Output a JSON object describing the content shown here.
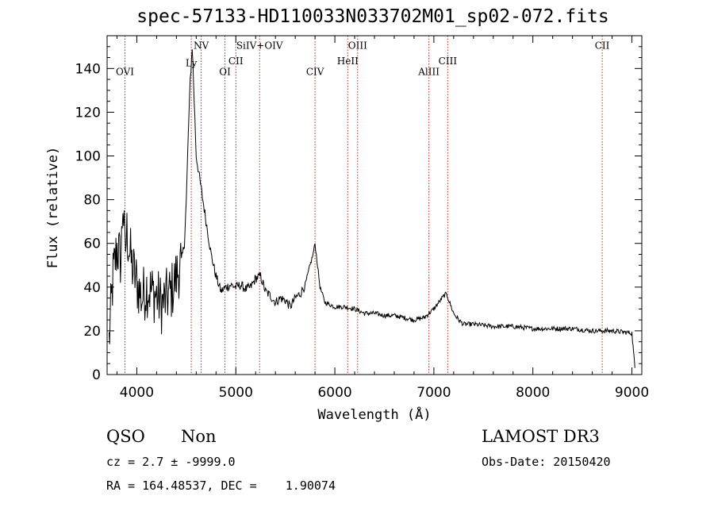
{
  "chart_data": {
    "type": "line",
    "title": "spec-57133-HD110033N033702M01_sp02-072.fits",
    "xlabel": "Wavelength (Å)",
    "ylabel": "Flux (relative)",
    "xlim": [
      3700,
      9100
    ],
    "ylim": [
      0,
      155
    ],
    "xticks": [
      4000,
      5000,
      6000,
      7000,
      8000,
      9000
    ],
    "yticks": [
      0,
      20,
      40,
      60,
      80,
      100,
      120,
      140
    ],
    "lines": [
      {
        "name": "OVI",
        "wavelength": 3880,
        "label_y": 137
      },
      {
        "name": "Ly",
        "wavelength": 4550,
        "label_y": 141
      },
      {
        "name": "NV",
        "wavelength": 4650,
        "label_y": 149
      },
      {
        "name": "OI",
        "wavelength": 4890,
        "label_y": 137
      },
      {
        "name": "CII",
        "wavelength": 5000,
        "label_y": 142
      },
      {
        "name": "SiIV+OIV",
        "wavelength": 5240,
        "label_y": 149
      },
      {
        "name": "CIV",
        "wavelength": 5800,
        "label_y": 137
      },
      {
        "name": "HeII",
        "wavelength": 6130,
        "label_y": 142
      },
      {
        "name": "OIII",
        "wavelength": 6230,
        "label_y": 149
      },
      {
        "name": "AlIII",
        "wavelength": 6950,
        "label_y": 137
      },
      {
        "name": "CIII",
        "wavelength": 7140,
        "label_y": 142
      },
      {
        "name": "CII",
        "wavelength": 8700,
        "label_y": 149
      }
    ],
    "series": [
      {
        "x": [
          3720,
          3760,
          3800,
          3840,
          3860,
          3880,
          3900,
          3950,
          4000,
          4050,
          4100,
          4150,
          4200,
          4250,
          4300,
          4350,
          4400,
          4450,
          4480,
          4500,
          4520,
          4540,
          4560,
          4580,
          4600,
          4650,
          4700,
          4750,
          4800,
          4850,
          4900,
          4950,
          5000,
          5050,
          5100,
          5150,
          5200,
          5250,
          5300,
          5350,
          5400,
          5450,
          5500,
          5550,
          5600,
          5650,
          5700,
          5750,
          5780,
          5800,
          5820,
          5850,
          5900,
          6000,
          6100,
          6200,
          6300,
          6400,
          6500,
          6600,
          6700,
          6800,
          6900,
          7000,
          7050,
          7100,
          7130,
          7150,
          7200,
          7250,
          7300,
          7400,
          7600,
          7800,
          8000,
          8200,
          8400,
          8600,
          8800,
          9000,
          9030
        ],
        "y": [
          15,
          45,
          58,
          52,
          80,
          55,
          65,
          50,
          42,
          35,
          40,
          38,
          36,
          32,
          35,
          38,
          45,
          52,
          60,
          80,
          110,
          135,
          150,
          125,
          100,
          85,
          70,
          55,
          45,
          38,
          40,
          41,
          40,
          41,
          39,
          40,
          44,
          45,
          38,
          36,
          33,
          35,
          34,
          31,
          35,
          37,
          41,
          50,
          55,
          60,
          52,
          40,
          33,
          31,
          31,
          30,
          28,
          28,
          27,
          27,
          26,
          25,
          26,
          30,
          33,
          36,
          37,
          34,
          28,
          25,
          23,
          23,
          22,
          22,
          21,
          21,
          21,
          20,
          20,
          19,
          3
        ]
      }
    ]
  },
  "annotations": {
    "object_class": "QSO",
    "subclass": "Non",
    "survey": "LAMOST DR3",
    "cz": "cz = 2.7 ± -9999.0",
    "obs_date": "Obs-Date: 20150420",
    "coords": "RA = 164.48537, DEC =    1.90074"
  }
}
